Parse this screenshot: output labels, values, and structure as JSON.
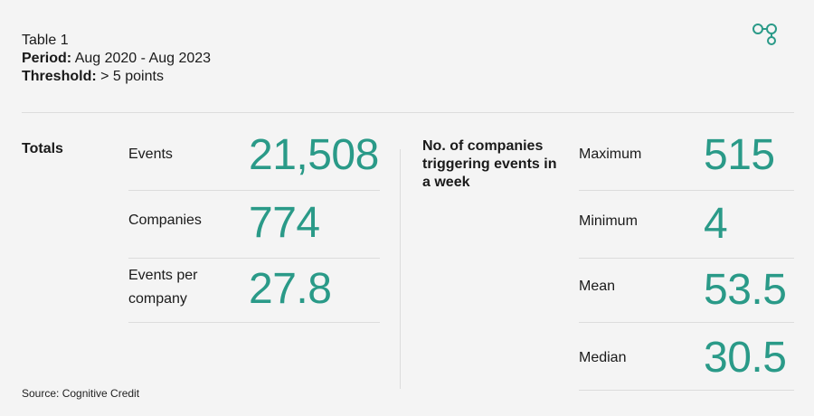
{
  "header": {
    "table_label": "Table 1",
    "period_label": "Period:",
    "period_value": "Aug 2020 - Aug 2023",
    "threshold_label": "Threshold:",
    "threshold_value": "> 5 points"
  },
  "logo": {
    "icon": "linked-circles-icon",
    "color": "#2a9a88"
  },
  "totals": {
    "title": "Totals",
    "rows": [
      {
        "label": "Events",
        "value": "21,508"
      },
      {
        "label": "Companies",
        "value": "774"
      },
      {
        "label": "Events per company",
        "value": "27.8"
      }
    ]
  },
  "weekly": {
    "title": "No. of companies triggering events in a week",
    "rows": [
      {
        "label": "Maximum",
        "value": "515"
      },
      {
        "label": "Minimum",
        "value": "4"
      },
      {
        "label": "Mean",
        "value": "53.5"
      },
      {
        "label": "Median",
        "value": "30.5"
      }
    ]
  },
  "footer": {
    "source": "Source: Cognitive Credit"
  },
  "colors": {
    "accent": "#2a9a88",
    "rule": "#dcdcdc",
    "background": "#f4f4f4"
  }
}
